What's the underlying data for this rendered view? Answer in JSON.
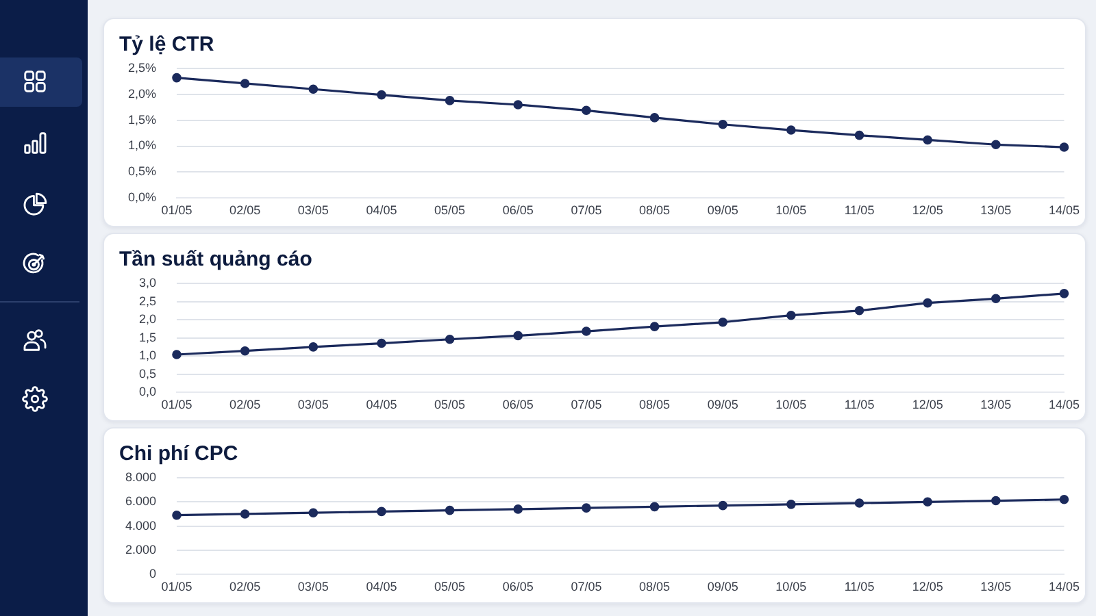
{
  "chart_data": [
    {
      "type": "line",
      "title": "Tỷ lệ CTR",
      "categories": [
        "01/05",
        "02/05",
        "03/05",
        "04/05",
        "05/05",
        "06/05",
        "07/05",
        "08/05",
        "09/05",
        "10/05",
        "11/05",
        "12/05",
        "13/05",
        "14/05"
      ],
      "values": [
        2.32,
        2.21,
        2.1,
        1.99,
        1.88,
        1.8,
        1.69,
        1.55,
        1.42,
        1.31,
        1.21,
        1.12,
        1.03,
        0.98
      ],
      "color": "#1b2a5c",
      "ylim": [
        0,
        2.5
      ],
      "yticks": [
        {
          "value": 0,
          "label": "0,0%"
        },
        {
          "value": 0.5,
          "label": "0,5%"
        },
        {
          "value": 1,
          "label": "1,0%"
        },
        {
          "value": 1.5,
          "label": "1,5%"
        },
        {
          "value": 2,
          "label": "2,0%"
        },
        {
          "value": 2.5,
          "label": "2,5%"
        }
      ],
      "grid": "y",
      "marker": "circle"
    },
    {
      "type": "line",
      "title": "Tần suất quảng cáo",
      "categories": [
        "01/05",
        "02/05",
        "03/05",
        "04/05",
        "05/05",
        "06/05",
        "07/05",
        "08/05",
        "09/05",
        "10/05",
        "11/05",
        "12/05",
        "13/05",
        "14/05"
      ],
      "values": [
        1.04,
        1.14,
        1.25,
        1.35,
        1.46,
        1.56,
        1.68,
        1.81,
        1.93,
        2.12,
        2.25,
        2.46,
        2.58,
        2.72
      ],
      "color": "#1b2a5c",
      "ylim": [
        0,
        3
      ],
      "yticks": [
        {
          "value": 0,
          "label": "0,0"
        },
        {
          "value": 0.5,
          "label": "0,5"
        },
        {
          "value": 1,
          "label": "1,0"
        },
        {
          "value": 1.5,
          "label": "1,5"
        },
        {
          "value": 2,
          "label": "2,0"
        },
        {
          "value": 2.5,
          "label": "2,5"
        },
        {
          "value": 3,
          "label": "3,0"
        }
      ],
      "grid": "y",
      "marker": "circle"
    },
    {
      "type": "line",
      "title": "Chi phí CPC",
      "categories": [
        "01/05",
        "02/05",
        "03/05",
        "04/05",
        "05/05",
        "06/05",
        "07/05",
        "08/05",
        "09/05",
        "10/05",
        "11/05",
        "12/05",
        "13/05",
        "14/05"
      ],
      "values": [
        4900,
        5000,
        5100,
        5200,
        5300,
        5400,
        5500,
        5600,
        5700,
        5800,
        5900,
        6000,
        6100,
        6200
      ],
      "color": "#1b2a5c",
      "ylim": [
        0,
        8000
      ],
      "yticks": [
        0,
        {
          "value": 2000,
          "label": "2.000"
        },
        {
          "value": 4000,
          "label": "4.000"
        },
        {
          "value": 6000,
          "label": "6.000"
        },
        {
          "value": 8000,
          "label": "8.000"
        }
      ],
      "grid": "y",
      "marker": "circle"
    }
  ]
}
